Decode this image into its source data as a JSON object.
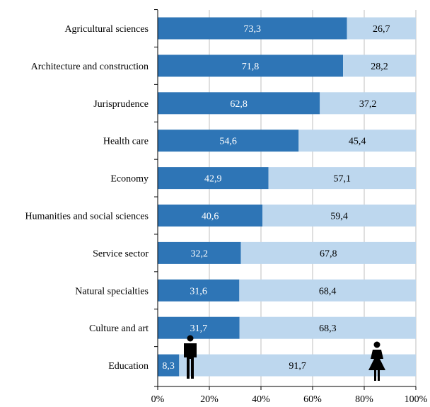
{
  "chart_data": {
    "type": "bar",
    "orientation": "horizontal",
    "stacked": true,
    "categories": [
      "Agricultural sciences",
      "Architecture and construction",
      "Jurisprudence",
      "Health care",
      "Economy",
      "Humanities and social sciences",
      "Service sector",
      "Natural specialties",
      "Culture and art",
      "Education"
    ],
    "series": [
      {
        "values": [
          73.3,
          71.8,
          62.8,
          54.6,
          42.9,
          40.6,
          32.2,
          31.6,
          31.7,
          8.3
        ],
        "labels": [
          "73,3",
          "71,8",
          "62,8",
          "54,6",
          "42,9",
          "40,6",
          "32,2",
          "31,6",
          "31,7",
          "8,3"
        ],
        "color": "#2e75b6",
        "icon": "male-figure-icon"
      },
      {
        "values": [
          26.7,
          28.2,
          37.2,
          45.4,
          57.1,
          59.4,
          67.8,
          68.4,
          68.3,
          91.7
        ],
        "labels": [
          "26,7",
          "28,2",
          "37,2",
          "45,4",
          "57,1",
          "59,4",
          "67,8",
          "68,4",
          "68,3",
          "91,7"
        ],
        "color": "#bdd7ee",
        "icon": "female-figure-icon"
      }
    ],
    "x_ticks": [
      "0%",
      "20%",
      "40%",
      "60%",
      "80%",
      "100%"
    ],
    "xlim": [
      0,
      100
    ],
    "grid": true,
    "title": "",
    "xlabel": "",
    "ylabel": ""
  }
}
